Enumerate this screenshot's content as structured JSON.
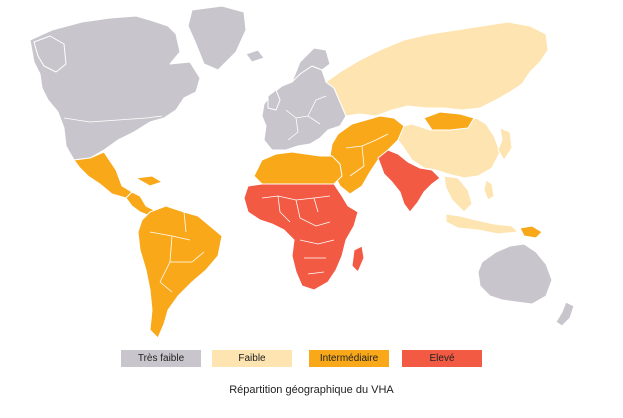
{
  "colors": {
    "tres_faible": "#c8c6cc",
    "faible": "#fde4b0",
    "intermediaire": "#f8a818",
    "eleve": "#f25a44"
  },
  "legend": [
    {
      "key": "tres_faible",
      "label": "Très faible",
      "color": "#c8c6cc"
    },
    {
      "key": "faible",
      "label": "Faible",
      "color": "#fde4b0"
    },
    {
      "key": "intermediaire",
      "label": "Intermédiaire",
      "color": "#f8a818"
    },
    {
      "key": "eleve",
      "label": "Elevé",
      "color": "#f25a44"
    }
  ],
  "caption": "Répartition géographique du VHA"
}
